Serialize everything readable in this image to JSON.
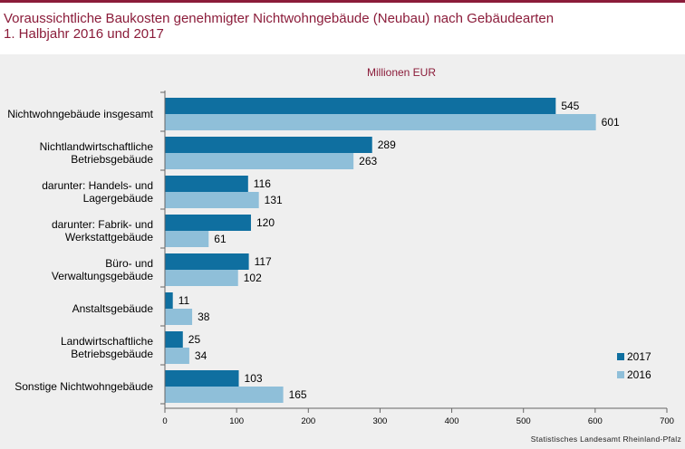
{
  "title_line1": "Voraussichtliche Baukosten genehmigter Nichtwohngebäude (Neubau) nach Gebäudearten",
  "title_line2": "1. Halbjahr 2016 und 2017",
  "source": "Statistisches Landesamt Rheinland-Pfalz",
  "colors": {
    "accent": "#8b1c3a",
    "series_2017": "#0f6fa0",
    "series_2016": "#8fbfd9",
    "background": "#efefef"
  },
  "chart_data": {
    "type": "bar",
    "orientation": "horizontal",
    "unit_label": "Millionen EUR",
    "categories": [
      [
        "Nichtwohngebäude insgesamt"
      ],
      [
        "Nichtlandwirtschaftliche",
        "Betriebsgebäude"
      ],
      [
        "darunter: Handels- und",
        "Lagergebäude"
      ],
      [
        "darunter: Fabrik- und",
        "Werkstattgebäude"
      ],
      [
        "Büro- und",
        "Verwaltungsgebäude"
      ],
      [
        "Anstaltsgebäude"
      ],
      [
        "Landwirtschaftliche",
        "Betriebsgebäude"
      ],
      [
        "Sonstige Nichtwohngebäude"
      ]
    ],
    "series": [
      {
        "name": "2017",
        "color": "#0f6fa0",
        "values": [
          545,
          289,
          116,
          120,
          117,
          11,
          25,
          103
        ]
      },
      {
        "name": "2016",
        "color": "#8fbfd9",
        "values": [
          601,
          263,
          131,
          61,
          102,
          38,
          34,
          165
        ]
      }
    ],
    "xlim": [
      0,
      700
    ],
    "xticks": [
      0,
      100,
      200,
      300,
      400,
      500,
      600,
      700
    ],
    "legend_position": "bottom-right",
    "grid": false
  }
}
